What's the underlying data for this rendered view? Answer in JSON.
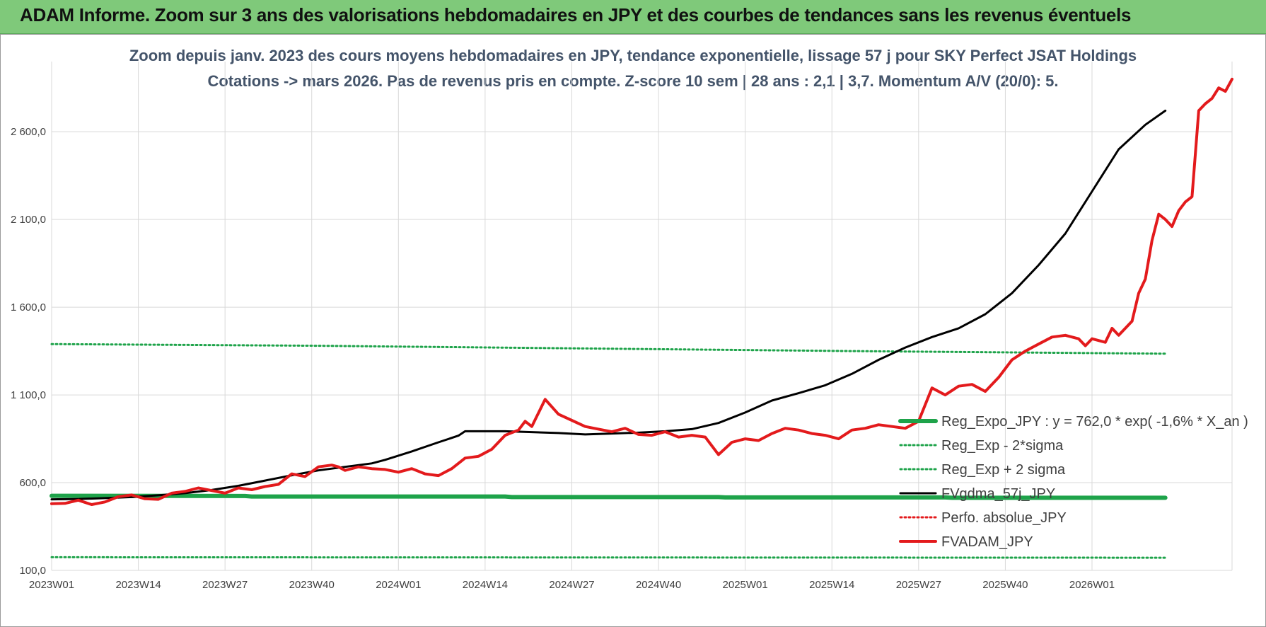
{
  "banner": {
    "title": "ADAM Informe. Zoom sur 3 ans des valorisations hebdomadaires en JPY et des courbes de tendances sans les revenus éventuels"
  },
  "chart_data": {
    "type": "line",
    "title": "Zoom depuis janv. 2023 des cours moyens hebdomadaires en JPY, tendance exponentielle, lissage 57 j pour SKY Perfect JSAT Holdings",
    "subtitle": "Cotations -> mars 2026. Pas de revenus pris en compte. Z-score 10 sem | 28 ans : 2,1 | 3,7. Momentum A/V (20/0): 5.",
    "xlabel": "",
    "ylabel": "",
    "x_ticks": [
      "2023W01",
      "2023W14",
      "2023W27",
      "2023W40",
      "2024W01",
      "2024W14",
      "2024W27",
      "2024W40",
      "2025W01",
      "2025W14",
      "2025W27",
      "2025W40",
      "2026W01"
    ],
    "y_ticks": [
      "100,0",
      "600,0",
      "1 100,0",
      "1 600,0",
      "2 100,0",
      "2 600,0"
    ],
    "ylim": [
      100,
      3000
    ],
    "x_range_weeks": [
      0,
      167
    ],
    "grid": true,
    "legend_position": "bottom-right",
    "series": [
      {
        "name": "Reg_Expo_JPY : y = 762,0 * exp( -1,6% *  X_an )",
        "color": "#1ea34a",
        "style": "solid-thick",
        "points": [
          [
            0,
            525
          ],
          [
            29,
            524
          ],
          [
            30,
            521
          ],
          [
            68,
            521
          ],
          [
            69,
            518
          ],
          [
            100,
            518
          ],
          [
            101,
            516
          ],
          [
            134,
            516
          ],
          [
            135,
            514
          ],
          [
            167,
            514
          ]
        ]
      },
      {
        "name": "Reg_Exp - 2*sigma",
        "color": "#1ea34a",
        "style": "dotted",
        "points": [
          [
            0,
            175
          ],
          [
            167,
            172
          ]
        ]
      },
      {
        "name": "Reg_Exp + 2 sigma",
        "color": "#1ea34a",
        "style": "dotted",
        "points": [
          [
            0,
            1390
          ],
          [
            40,
            1380
          ],
          [
            80,
            1365
          ],
          [
            120,
            1350
          ],
          [
            167,
            1335
          ]
        ]
      },
      {
        "name": "FVgdma_57j_JPY",
        "color": "#000000",
        "style": "solid",
        "points": [
          [
            0,
            505
          ],
          [
            4,
            507
          ],
          [
            8,
            512
          ],
          [
            12,
            518
          ],
          [
            16,
            528
          ],
          [
            20,
            540
          ],
          [
            24,
            558
          ],
          [
            28,
            582
          ],
          [
            32,
            612
          ],
          [
            36,
            642
          ],
          [
            40,
            670
          ],
          [
            44,
            690
          ],
          [
            48,
            710
          ],
          [
            50,
            730
          ],
          [
            54,
            778
          ],
          [
            58,
            830
          ],
          [
            61,
            868
          ],
          [
            62,
            893
          ],
          [
            64,
            893
          ],
          [
            68,
            893
          ],
          [
            72,
            888
          ],
          [
            76,
            883
          ],
          [
            80,
            875
          ],
          [
            84,
            880
          ],
          [
            88,
            885
          ],
          [
            92,
            893
          ],
          [
            96,
            905
          ],
          [
            100,
            940
          ],
          [
            104,
            1000
          ],
          [
            108,
            1068
          ],
          [
            112,
            1110
          ],
          [
            116,
            1155
          ],
          [
            120,
            1220
          ],
          [
            124,
            1300
          ],
          [
            128,
            1370
          ],
          [
            132,
            1430
          ],
          [
            136,
            1480
          ],
          [
            140,
            1560
          ],
          [
            144,
            1680
          ],
          [
            148,
            1840
          ],
          [
            152,
            2020
          ],
          [
            156,
            2260
          ],
          [
            160,
            2500
          ],
          [
            164,
            2640
          ],
          [
            167,
            2720
          ]
        ]
      },
      {
        "name": "Perfo. absolue_JPY",
        "color": "#e31a1c",
        "style": "dotted",
        "points": []
      },
      {
        "name": "FVADAM_JPY",
        "color": "#e31a1c",
        "style": "solid-thick",
        "points": [
          [
            0,
            480
          ],
          [
            2,
            482
          ],
          [
            4,
            500
          ],
          [
            6,
            475
          ],
          [
            8,
            490
          ],
          [
            10,
            520
          ],
          [
            12,
            530
          ],
          [
            14,
            508
          ],
          [
            16,
            505
          ],
          [
            18,
            540
          ],
          [
            20,
            550
          ],
          [
            22,
            570
          ],
          [
            24,
            555
          ],
          [
            26,
            540
          ],
          [
            28,
            570
          ],
          [
            30,
            560
          ],
          [
            32,
            578
          ],
          [
            34,
            590
          ],
          [
            36,
            650
          ],
          [
            38,
            635
          ],
          [
            40,
            690
          ],
          [
            42,
            700
          ],
          [
            43,
            690
          ],
          [
            44,
            670
          ],
          [
            46,
            690
          ],
          [
            48,
            680
          ],
          [
            50,
            675
          ],
          [
            52,
            660
          ],
          [
            54,
            680
          ],
          [
            56,
            650
          ],
          [
            58,
            640
          ],
          [
            60,
            680
          ],
          [
            62,
            740
          ],
          [
            64,
            750
          ],
          [
            66,
            790
          ],
          [
            68,
            870
          ],
          [
            70,
            900
          ],
          [
            71,
            950
          ],
          [
            72,
            920
          ],
          [
            74,
            1075
          ],
          [
            76,
            990
          ],
          [
            78,
            955
          ],
          [
            80,
            920
          ],
          [
            82,
            905
          ],
          [
            84,
            890
          ],
          [
            86,
            910
          ],
          [
            88,
            875
          ],
          [
            90,
            870
          ],
          [
            92,
            890
          ],
          [
            94,
            860
          ],
          [
            96,
            870
          ],
          [
            98,
            860
          ],
          [
            100,
            760
          ],
          [
            102,
            830
          ],
          [
            104,
            850
          ],
          [
            106,
            840
          ],
          [
            108,
            880
          ],
          [
            110,
            910
          ],
          [
            112,
            900
          ],
          [
            114,
            880
          ],
          [
            116,
            870
          ],
          [
            118,
            850
          ],
          [
            120,
            900
          ],
          [
            122,
            910
          ],
          [
            124,
            930
          ],
          [
            126,
            920
          ],
          [
            128,
            910
          ],
          [
            130,
            950
          ],
          [
            132,
            1140
          ],
          [
            134,
            1100
          ],
          [
            136,
            1150
          ],
          [
            138,
            1160
          ],
          [
            140,
            1120
          ],
          [
            142,
            1200
          ],
          [
            144,
            1300
          ],
          [
            146,
            1350
          ],
          [
            148,
            1390
          ],
          [
            150,
            1430
          ],
          [
            152,
            1440
          ],
          [
            154,
            1420
          ],
          [
            155,
            1380
          ],
          [
            156,
            1420
          ],
          [
            158,
            1400
          ],
          [
            159,
            1480
          ],
          [
            160,
            1440
          ],
          [
            161,
            1480
          ],
          [
            162,
            1520
          ],
          [
            163,
            1680
          ],
          [
            164,
            1760
          ],
          [
            165,
            1980
          ],
          [
            166,
            2130
          ],
          [
            167,
            2100
          ],
          [
            168,
            2060
          ],
          [
            169,
            2150
          ],
          [
            170,
            2200
          ],
          [
            171,
            2230
          ],
          [
            172,
            2720
          ],
          [
            173,
            2760
          ],
          [
            174,
            2790
          ],
          [
            175,
            2850
          ],
          [
            176,
            2830
          ],
          [
            177,
            2900
          ]
        ]
      }
    ]
  }
}
